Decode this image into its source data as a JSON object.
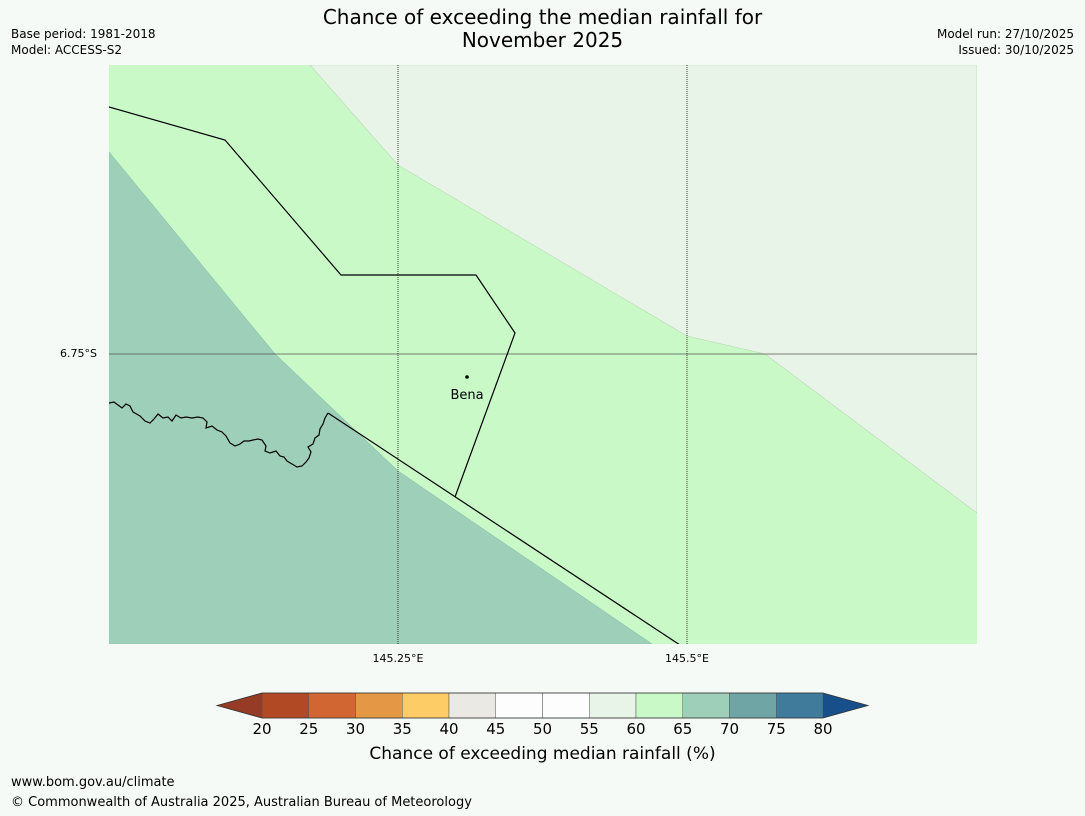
{
  "header": {
    "title_line1": "Chance of exceeding the median rainfall for",
    "title_line2": "November 2025",
    "base_period": "Base period: 1981-2018",
    "model": "Model: ACCESS-S2",
    "model_run": "Model run: 27/10/2025",
    "issued": "Issued: 30/10/2025"
  },
  "map": {
    "lat_labels": [
      "6.75°S"
    ],
    "lon_labels": [
      "145.25°E",
      "145.5°E"
    ],
    "places": [
      {
        "name": "Bena"
      }
    ],
    "category_colors": {
      "c55_60": "#e9f4e8",
      "c60_65": "#caf9c8",
      "c65_70": "#9ecfb9"
    }
  },
  "legend": {
    "title": "Chance of exceeding median rainfall (%)",
    "ticks": [
      "20",
      "25",
      "30",
      "35",
      "40",
      "45",
      "50",
      "55",
      "60",
      "65",
      "70",
      "75",
      "80"
    ],
    "under_color": "#963b25",
    "over_color": "#174f8b",
    "colors": [
      "#b14a24",
      "#d26632",
      "#e49845",
      "#fdcc67",
      "#ebe9e4",
      "#fcfdfc",
      "#fcfdfc",
      "#e9f4e8",
      "#caf9c8",
      "#9ecfb9",
      "#6fa5a4",
      "#407b9c"
    ]
  },
  "footer": {
    "url": "www.bom.gov.au/climate",
    "copyright": "© Commonwealth of Australia 2025, Australian Bureau of Meteorology"
  }
}
